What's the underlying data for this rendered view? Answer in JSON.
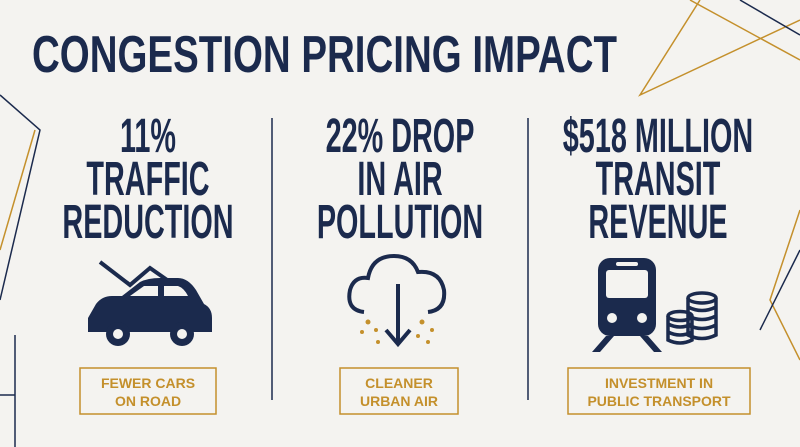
{
  "title": "CONGESTION PRICING IMPACT",
  "panels": [
    {
      "headline": [
        "11%",
        "TRAFFIC",
        "REDUCTION"
      ],
      "badge": [
        "FEWER CARS",
        "ON ROAD"
      ]
    },
    {
      "headline": [
        "22% DROP",
        "IN AIR",
        "POLLUTION"
      ],
      "badge": [
        "CLEANER",
        "URBAN AIR"
      ]
    },
    {
      "headline": [
        "$518 MILLION",
        "TRANSIT",
        "REVENUE"
      ],
      "badge": [
        "INVESTMENT IN",
        "PUBLIC TRANSPORT"
      ]
    }
  ]
}
